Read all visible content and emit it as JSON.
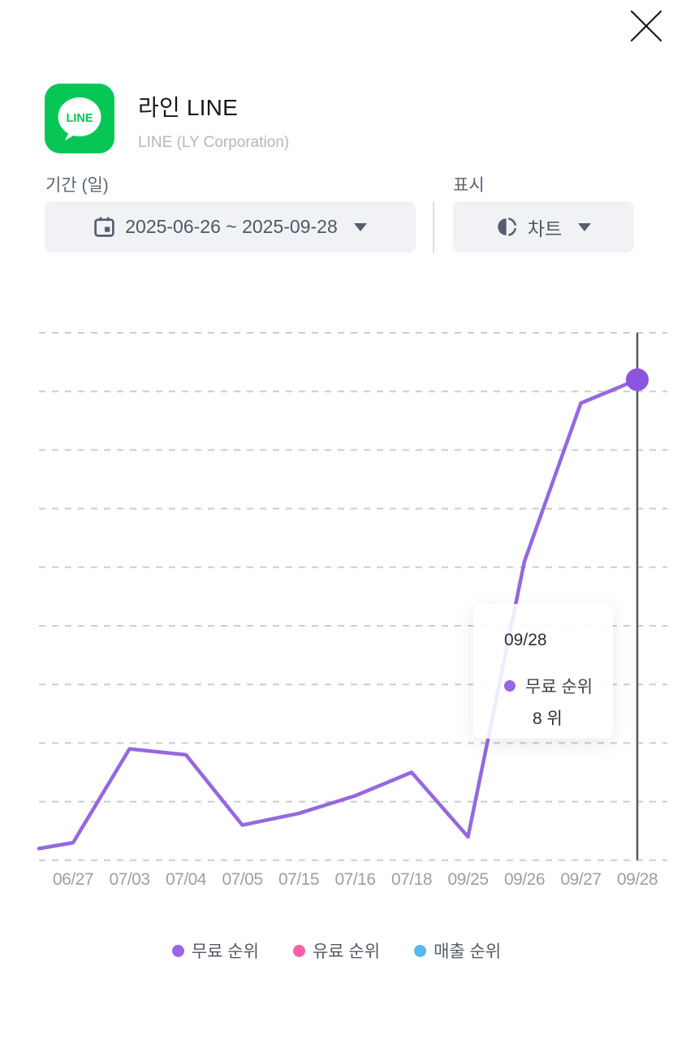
{
  "modal": {
    "close_label": "close"
  },
  "app": {
    "icon_text": "LINE",
    "icon_bg": "#06C755",
    "title": "라인 LINE",
    "subtitle": "LINE (LY Corporation)"
  },
  "filters": {
    "period_label": "기간 (일)",
    "period_value": "2025-06-26  ~  2025-09-28",
    "display_label": "표시",
    "display_value": "차트"
  },
  "tooltip": {
    "date": "09/28",
    "series": "무료 순위",
    "value": "8 위",
    "dot_color": "#9468e0"
  },
  "legend": [
    {
      "key": "free-rank",
      "label": "무료 순위",
      "color": "#9a66e8"
    },
    {
      "key": "paid-rank",
      "label": "유료 순위",
      "color": "#f660a7"
    },
    {
      "key": "sales-rank",
      "label": "매출 순위",
      "color": "#55b8f0"
    }
  ],
  "chart_data": {
    "type": "line",
    "title": "",
    "xlabel": "",
    "ylabel": "",
    "categories": [
      "06/27",
      "07/03",
      "07/04",
      "07/05",
      "07/15",
      "07/16",
      "07/18",
      "09/25",
      "09/26",
      "09/27",
      "09/28"
    ],
    "series": [
      {
        "name": "무료 순위",
        "color": "#9468e0",
        "point_color": "#8d55dd",
        "values": [
          87,
          71,
          72,
          84,
          82,
          79,
          75,
          86,
          39,
          12,
          8
        ]
      }
    ],
    "leading_edge_value": 88,
    "y_axis": {
      "inverted": true,
      "unit": "위",
      "top_value": 0,
      "bottom_value": 90,
      "tick_labels_visible": false
    },
    "grid": "horizontal-dashed",
    "grid_color": "#c9cdd4",
    "cursor_color": "#54585d",
    "cursor_index": 10,
    "highlight": {
      "category": "09/28",
      "series": "무료 순위",
      "value": 8,
      "value_label": "8 위"
    },
    "legend_position": "bottom"
  }
}
